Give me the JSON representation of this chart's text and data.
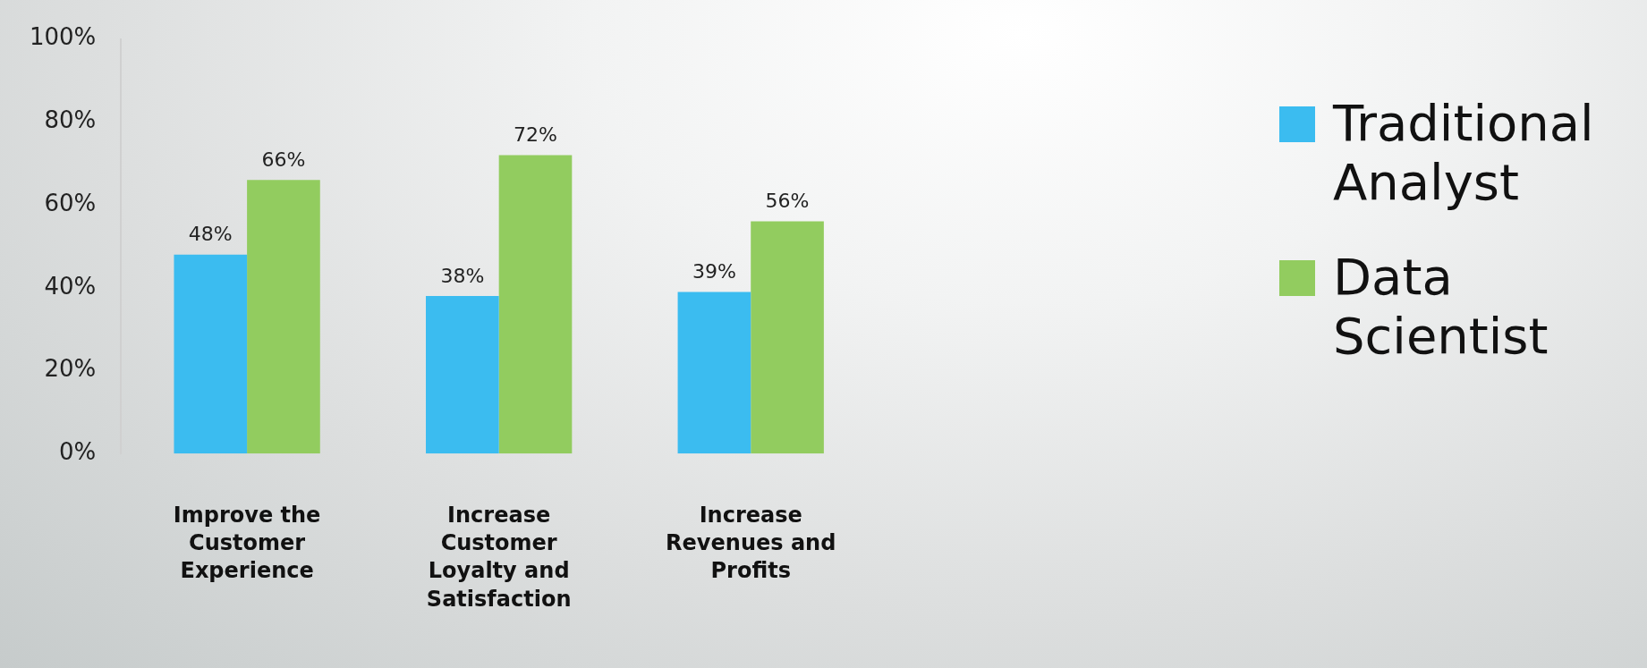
{
  "chart_data": {
    "type": "bar",
    "categories": [
      "Improve the Customer Experience",
      "Increase Customer Loyalty and Satisfaction",
      "Increase Revenues and Profits"
    ],
    "series": [
      {
        "name": "Traditional Analyst",
        "color": "#3bbcf0",
        "values": [
          48,
          38,
          39
        ],
        "value_labels": [
          "48%",
          "38%",
          "39%"
        ]
      },
      {
        "name": "Data Scientist",
        "color": "#92cc5f",
        "values": [
          66,
          72,
          56
        ],
        "value_labels": [
          "66%",
          "72%",
          "56%"
        ]
      }
    ],
    "ylim": [
      0,
      100
    ],
    "yticks": [
      {
        "value": 0,
        "label": "0%"
      },
      {
        "value": 20,
        "label": "20%"
      },
      {
        "value": 40,
        "label": "40%"
      },
      {
        "value": 60,
        "label": "60%"
      },
      {
        "value": 80,
        "label": "80%"
      },
      {
        "value": 100,
        "label": "100%"
      }
    ],
    "grid": false,
    "legend": "right"
  }
}
